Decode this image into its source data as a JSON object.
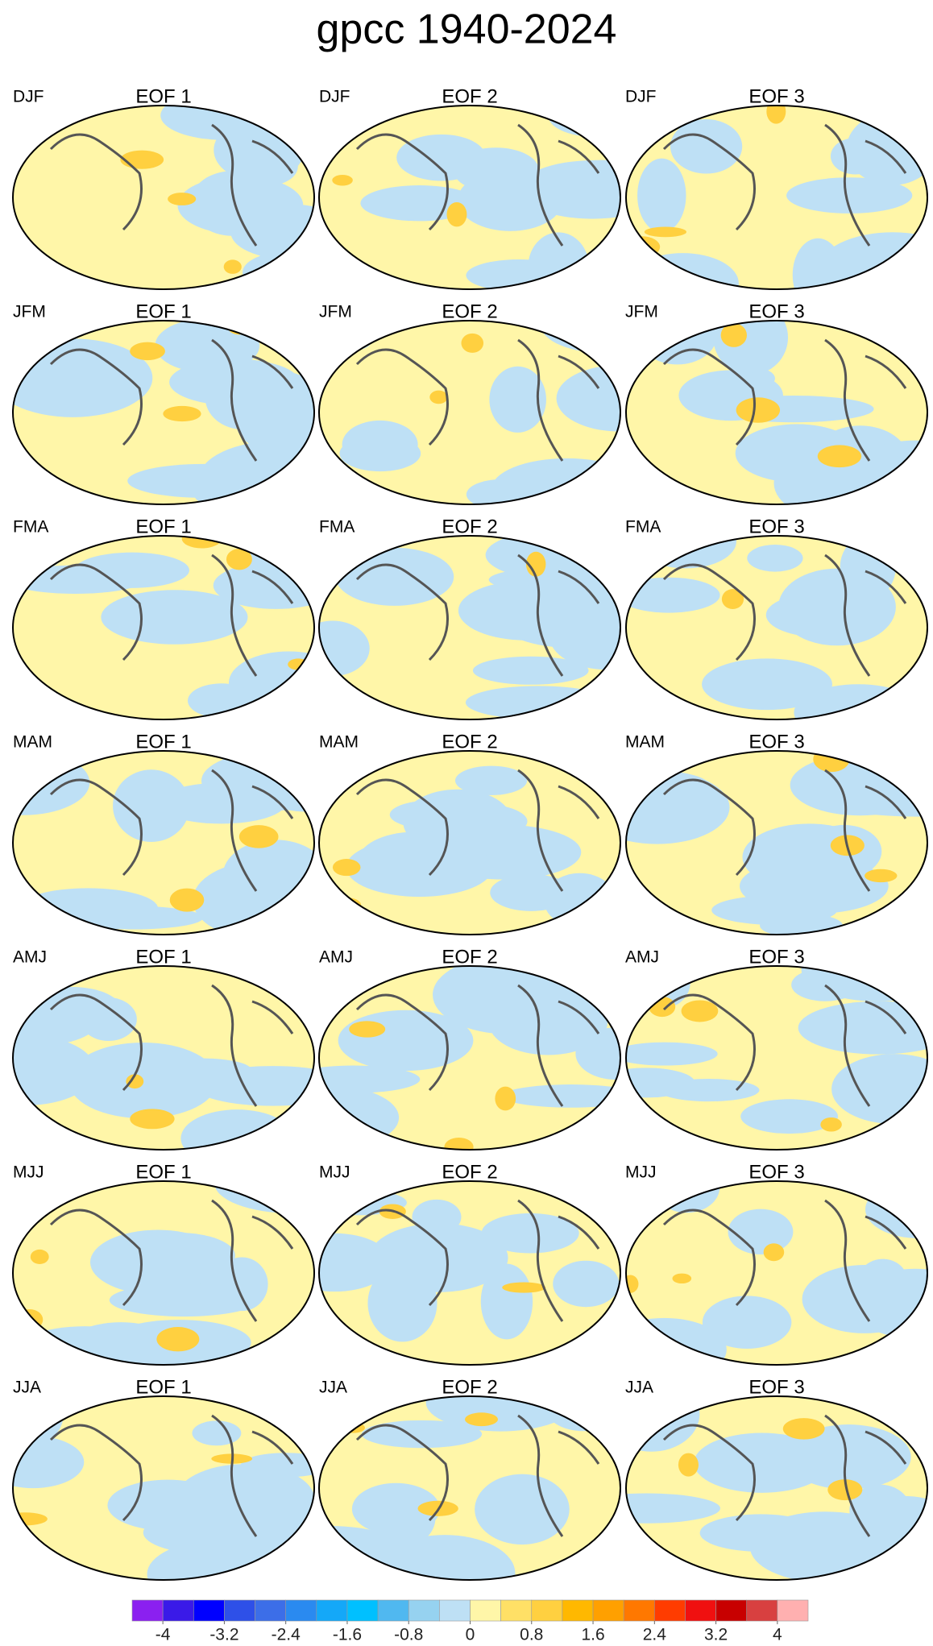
{
  "title": "gpcc 1940-2024",
  "panels": [
    {
      "season": "DJF",
      "label": "EOF 1"
    },
    {
      "season": "DJF",
      "label": "EOF 2"
    },
    {
      "season": "DJF",
      "label": "EOF 3"
    },
    {
      "season": "JFM",
      "label": "EOF 1"
    },
    {
      "season": "JFM",
      "label": "EOF 2"
    },
    {
      "season": "JFM",
      "label": "EOF 3"
    },
    {
      "season": "FMA",
      "label": "EOF 1"
    },
    {
      "season": "FMA",
      "label": "EOF 2"
    },
    {
      "season": "FMA",
      "label": "EOF 3"
    },
    {
      "season": "MAM",
      "label": "EOF 1"
    },
    {
      "season": "MAM",
      "label": "EOF 2"
    },
    {
      "season": "MAM",
      "label": "EOF 3"
    },
    {
      "season": "AMJ",
      "label": "EOF 1"
    },
    {
      "season": "AMJ",
      "label": "EOF 2"
    },
    {
      "season": "AMJ",
      "label": "EOF 3"
    },
    {
      "season": "MJJ",
      "label": "EOF 1"
    },
    {
      "season": "MJJ",
      "label": "EOF 2"
    },
    {
      "season": "MJJ",
      "label": "EOF 3"
    },
    {
      "season": "JJA",
      "label": "EOF 1"
    },
    {
      "season": "JJA",
      "label": "EOF 2"
    },
    {
      "season": "JJA",
      "label": "EOF 3"
    }
  ],
  "colorbar": {
    "colors": [
      "#8b20f0",
      "#3a1ae8",
      "#0000ff",
      "#2e50e8",
      "#3c6ee8",
      "#2a8af0",
      "#14a8f8",
      "#00c0ff",
      "#50b8f0",
      "#96d2f0",
      "#bee0f5",
      "#fff6a8",
      "#ffe066",
      "#ffd040",
      "#ffb800",
      "#ffa000",
      "#ff7800",
      "#ff3c00",
      "#f01010",
      "#c80000",
      "#d84040",
      "#ffb0b0"
    ],
    "ticks": [
      -4,
      -3.2,
      -2.4,
      -1.6,
      -0.8,
      0,
      0.8,
      1.6,
      2.4,
      3.2,
      4
    ]
  }
}
